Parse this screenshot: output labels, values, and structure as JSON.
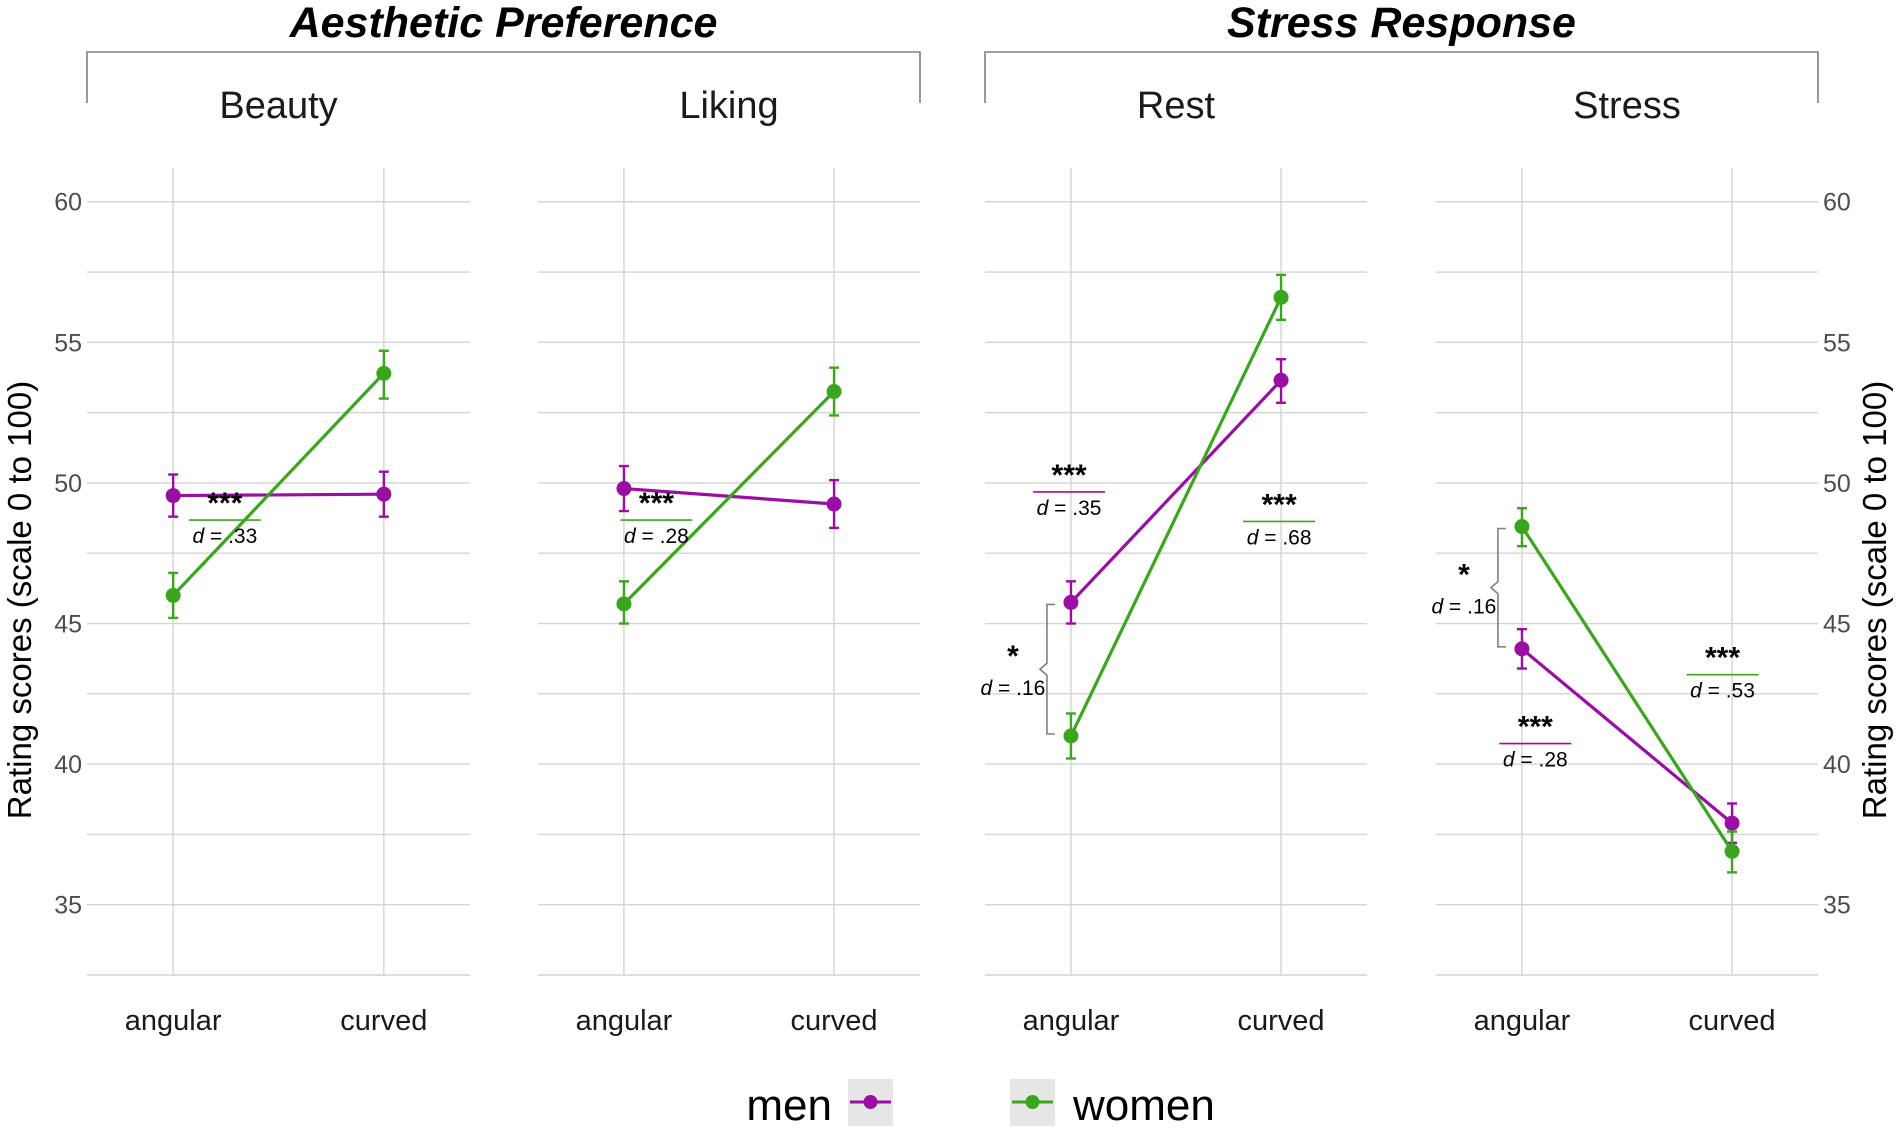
{
  "groups": [
    {
      "title": "Aesthetic Preference",
      "panels": [
        0,
        1
      ]
    },
    {
      "title": "Stress Response",
      "panels": [
        2,
        3
      ]
    }
  ],
  "y_axis": {
    "label": "Rating scores (scale 0 to 100)",
    "ticks": [
      "35",
      "40",
      "45",
      "50",
      "55",
      "60"
    ],
    "ylim": [
      32.5,
      61.2
    ]
  },
  "legend": {
    "entries": [
      {
        "label": "men",
        "series": "men"
      },
      {
        "label": "women",
        "series": "women"
      }
    ]
  },
  "colors": {
    "men": "#9b0ea3",
    "women": "#3aa61d"
  },
  "chart_data": {
    "type": "line",
    "categories": [
      "angular",
      "curved"
    ],
    "series_names": [
      "men",
      "women"
    ],
    "panels": [
      {
        "title": "Beauty",
        "series": [
          {
            "name": "men",
            "values": [
              49.55,
              49.6
            ],
            "err_low": [
              48.8,
              48.8
            ],
            "err_high": [
              50.3,
              50.4
            ]
          },
          {
            "name": "women",
            "values": [
              46.0,
              53.9
            ],
            "err_low": [
              45.2,
              53.0
            ],
            "err_high": [
              46.8,
              54.7
            ]
          }
        ],
        "annotations": [
          {
            "stars": "***",
            "d": ".33",
            "series": "women",
            "at": [
              0.36,
              49.0
            ],
            "anchor": "middle"
          }
        ]
      },
      {
        "title": "Liking",
        "series": [
          {
            "name": "men",
            "values": [
              49.8,
              49.25
            ],
            "err_low": [
              49.0,
              48.4
            ],
            "err_high": [
              50.6,
              50.1
            ]
          },
          {
            "name": "women",
            "values": [
              45.7,
              53.25
            ],
            "err_low": [
              45.0,
              52.4
            ],
            "err_high": [
              46.5,
              54.1
            ]
          }
        ],
        "annotations": [
          {
            "stars": "***",
            "d": ".28",
            "series": "women",
            "at": [
              0.31,
              49.0
            ],
            "anchor": "middle"
          }
        ]
      },
      {
        "title": "Rest",
        "series": [
          {
            "name": "men",
            "values": [
              45.75,
              53.65
            ],
            "err_low": [
              45.0,
              52.85
            ],
            "err_high": [
              46.5,
              54.4
            ]
          },
          {
            "name": "women",
            "values": [
              41.0,
              56.6
            ],
            "err_low": [
              40.2,
              55.8
            ],
            "err_high": [
              41.8,
              57.4
            ]
          }
        ],
        "annotations": [
          {
            "stars": "***",
            "d": ".35",
            "series": "men",
            "at": [
              0.22,
              50.0
            ],
            "anchor": "middle"
          },
          {
            "stars": "***",
            "d": ".68",
            "series": "women",
            "at": [
              0.77,
              48.95
            ],
            "anchor": "middle"
          },
          {
            "stars": "*",
            "d": ".16",
            "series": "bracket",
            "bracket": [
              41.0,
              45.75
            ],
            "at": [
              -0.19,
              43.1
            ],
            "anchor": "middle"
          }
        ]
      },
      {
        "title": "Stress",
        "series": [
          {
            "name": "men",
            "values": [
              44.1,
              37.9
            ],
            "err_low": [
              43.4,
              37.2
            ],
            "err_high": [
              44.8,
              38.6
            ]
          },
          {
            "name": "women",
            "values": [
              48.45,
              36.9
            ],
            "err_low": [
              47.75,
              36.15
            ],
            "err_high": [
              49.1,
              37.6
            ]
          }
        ],
        "annotations": [
          {
            "stars": "***",
            "d": ".53",
            "series": "women",
            "at": [
              0.75,
              43.5
            ],
            "anchor": "middle"
          },
          {
            "stars": "***",
            "d": ".28",
            "series": "men",
            "at": [
              0.26,
              41.05
            ],
            "anchor": "middle"
          },
          {
            "stars": "*",
            "d": ".16",
            "series": "bracket",
            "bracket": [
              44.1,
              48.45
            ],
            "at": [
              -0.2,
              46.2
            ],
            "anchor": "middle"
          }
        ]
      }
    ]
  }
}
